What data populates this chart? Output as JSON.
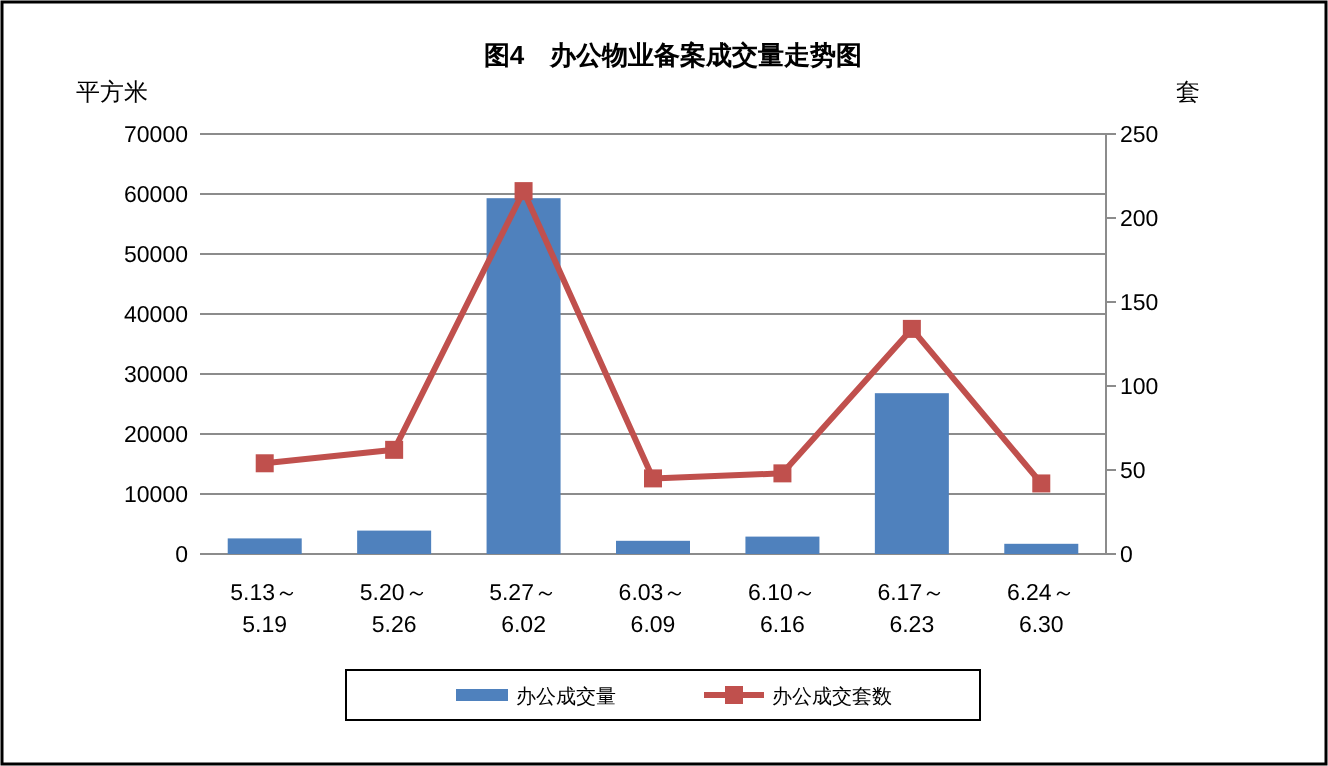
{
  "chart_data": {
    "type": "bar",
    "title": "图4　办公物业备案成交量走势图",
    "ylabel": "平方米",
    "y2label": "套",
    "categories": [
      "5.13～5.19",
      "5.20～5.26",
      "5.27～6.02",
      "6.03～6.09",
      "6.10～6.16",
      "6.17～6.23",
      "6.24～6.30"
    ],
    "series": [
      {
        "name": "办公成交量",
        "color": "#4f81bd",
        "values": [
          2600,
          3900,
          59300,
          2200,
          2900,
          26800,
          1700
        ]
      },
      {
        "name": "办公成交套数",
        "type": "line",
        "axis": "y2",
        "color": "#c0504d",
        "marker": "square",
        "values": [
          54,
          62,
          216,
          45,
          48,
          134,
          42
        ]
      }
    ],
    "ylim": [
      0,
      70000
    ],
    "yticks": [
      0,
      10000,
      20000,
      30000,
      40000,
      50000,
      60000,
      70000
    ],
    "y2lim": [
      0,
      250
    ],
    "y2ticks": [
      0,
      50,
      100,
      150,
      200,
      250
    ],
    "grid": "y",
    "legend": "bottom"
  }
}
